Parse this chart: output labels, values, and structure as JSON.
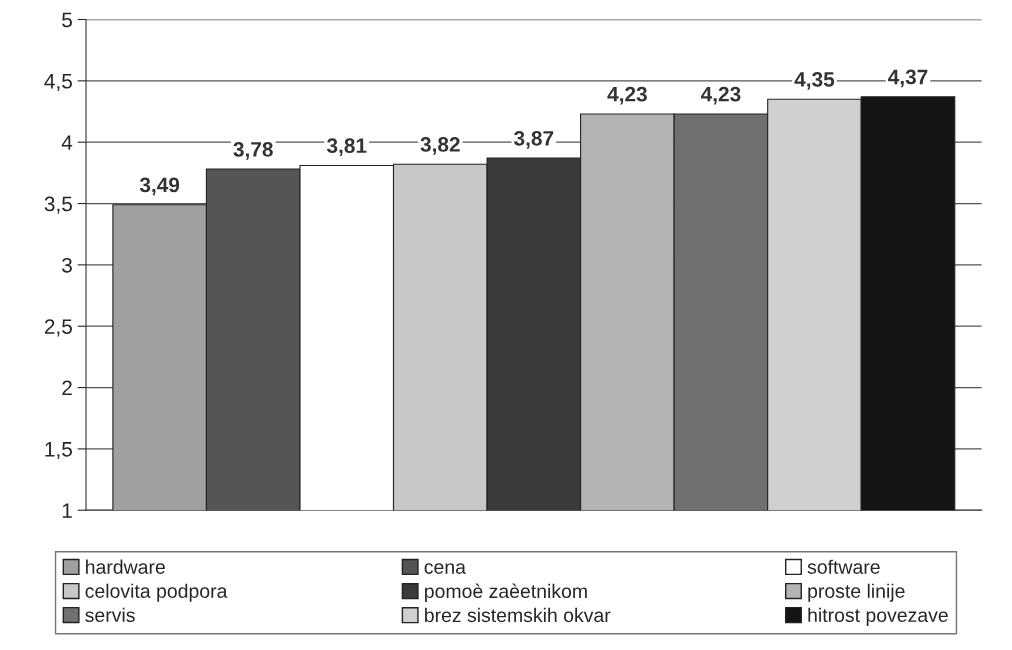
{
  "chart_data": {
    "type": "bar",
    "categories": [
      null
    ],
    "series": [
      {
        "name": "hardware",
        "color": "#a0a0a0",
        "values": [
          3.49
        ],
        "value_labels": [
          "3,49"
        ]
      },
      {
        "name": "cena",
        "color": "#555555",
        "values": [
          3.78
        ],
        "value_labels": [
          "3,78"
        ]
      },
      {
        "name": "software",
        "color": "#ffffff",
        "values": [
          3.81
        ],
        "value_labels": [
          "3,81"
        ]
      },
      {
        "name": "celovita podpora",
        "color": "#c8c8c8",
        "values": [
          3.82
        ],
        "value_labels": [
          "3,82"
        ]
      },
      {
        "name": "pomoè zaèetnikom",
        "color": "#3a3a3a",
        "values": [
          3.87
        ],
        "value_labels": [
          "3,87"
        ]
      },
      {
        "name": "proste linije",
        "color": "#b4b4b4",
        "values": [
          4.23
        ],
        "value_labels": [
          "4,23"
        ]
      },
      {
        "name": "servis",
        "color": "#707070",
        "values": [
          4.23
        ],
        "value_labels": [
          "4,23"
        ]
      },
      {
        "name": "brez sistemskih okvar",
        "color": "#d0d0d0",
        "values": [
          4.35
        ],
        "value_labels": [
          "4,35"
        ]
      },
      {
        "name": "hitrost povezave",
        "color": "#151515",
        "values": [
          4.37
        ],
        "value_labels": [
          "4,37"
        ]
      }
    ],
    "ylim": [
      1,
      5
    ],
    "yticks": [
      1,
      {
        "value": 1.5,
        "label": "1,5"
      },
      2,
      {
        "value": 2.5,
        "label": "2,5"
      },
      3,
      {
        "value": 3.5,
        "label": "3,5"
      },
      4,
      {
        "value": 4.5,
        "label": "4,5"
      },
      5
    ],
    "grid": "y",
    "legend": "bottom"
  }
}
